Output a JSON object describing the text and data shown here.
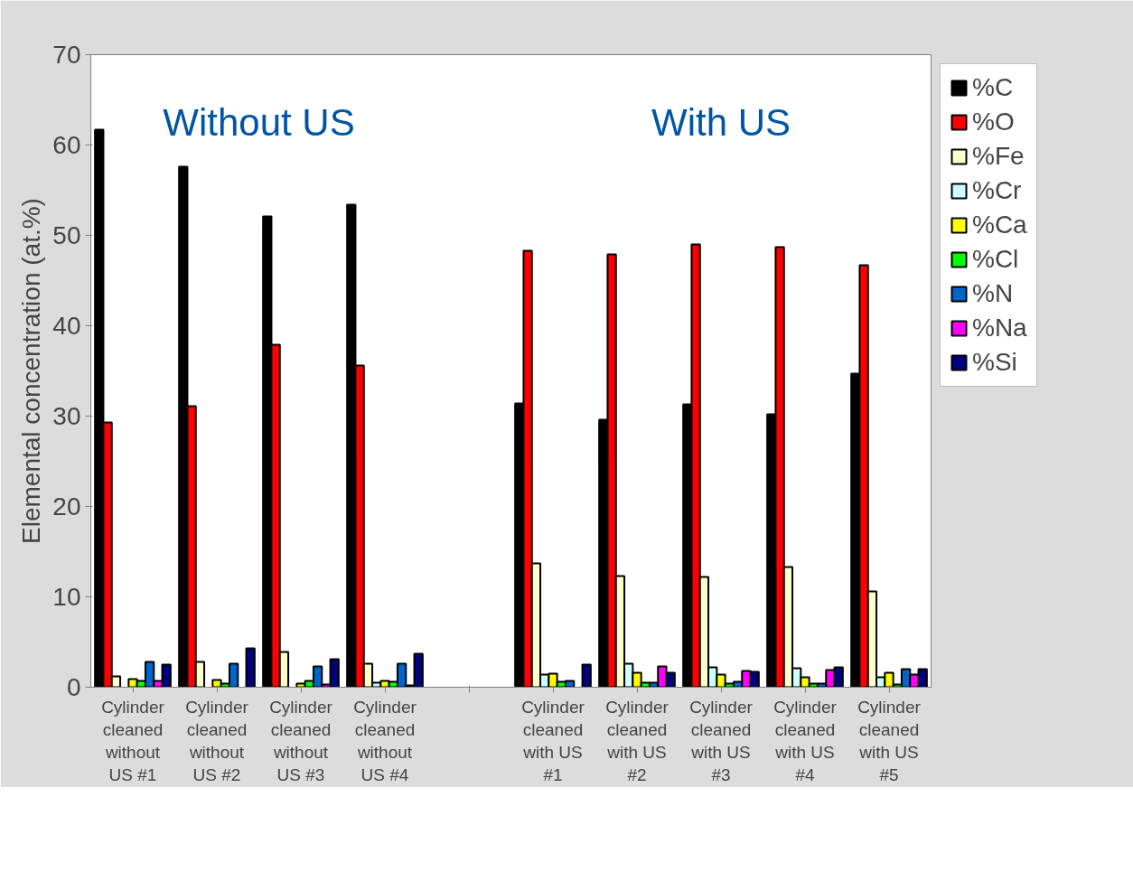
{
  "chart_data": {
    "type": "bar",
    "ylabel": "Elemental concentration (at.%)",
    "categories": [
      "Cylinder cleaned without US #1",
      "Cylinder cleaned without US #2",
      "Cylinder cleaned without US #3",
      "Cylinder cleaned without US #4",
      null,
      "Cylinder cleaned with US #1",
      "Cylinder cleaned with US #2",
      "Cylinder cleaned with US #3",
      "Cylinder cleaned with US #4",
      "Cylinder cleaned with US #5"
    ],
    "series": [
      {
        "name": "%C",
        "color": "#000000",
        "values": [
          61.7,
          57.6,
          52.1,
          53.4,
          null,
          31.4,
          29.6,
          31.3,
          30.2,
          34.7
        ]
      },
      {
        "name": "%O",
        "color": "#ff0000",
        "values": [
          29.3,
          31.1,
          37.9,
          35.6,
          null,
          48.3,
          47.9,
          49.0,
          48.7,
          46.7
        ]
      },
      {
        "name": "%Fe",
        "color": "#ffffcc",
        "values": [
          1.2,
          2.8,
          3.9,
          2.6,
          null,
          13.7,
          12.3,
          12.2,
          13.3,
          10.6
        ]
      },
      {
        "name": "%Cr",
        "color": "#ccffff",
        "values": [
          null,
          null,
          null,
          0.5,
          null,
          1.4,
          2.6,
          2.2,
          2.1,
          1.1
        ]
      },
      {
        "name": "%Ca",
        "color": "#ffff00",
        "values": [
          0.9,
          0.8,
          0.4,
          0.7,
          null,
          1.5,
          1.6,
          1.4,
          1.1,
          1.6
        ]
      },
      {
        "name": "%Cl",
        "color": "#00ff00",
        "values": [
          0.7,
          0.4,
          0.7,
          0.6,
          null,
          0.6,
          0.5,
          0.4,
          0.4,
          0.3
        ]
      },
      {
        "name": "%N",
        "color": "#0066cc",
        "values": [
          2.8,
          2.6,
          2.3,
          2.6,
          null,
          0.7,
          0.5,
          0.6,
          0.4,
          2.0
        ]
      },
      {
        "name": "%Na",
        "color": "#ff00ff",
        "values": [
          0.7,
          null,
          0.3,
          0.2,
          null,
          null,
          2.3,
          1.8,
          1.9,
          1.4
        ]
      },
      {
        "name": "%Si",
        "color": "#000080",
        "values": [
          2.5,
          4.3,
          3.1,
          3.7,
          null,
          2.5,
          1.6,
          1.7,
          2.2,
          2.0
        ]
      }
    ],
    "ylim": [
      0,
      70
    ],
    "yticks": [
      0,
      10,
      20,
      30,
      40,
      50,
      60,
      70
    ],
    "grid": false,
    "legend": "right",
    "annotations": [
      "Without US",
      "With US"
    ]
  }
}
